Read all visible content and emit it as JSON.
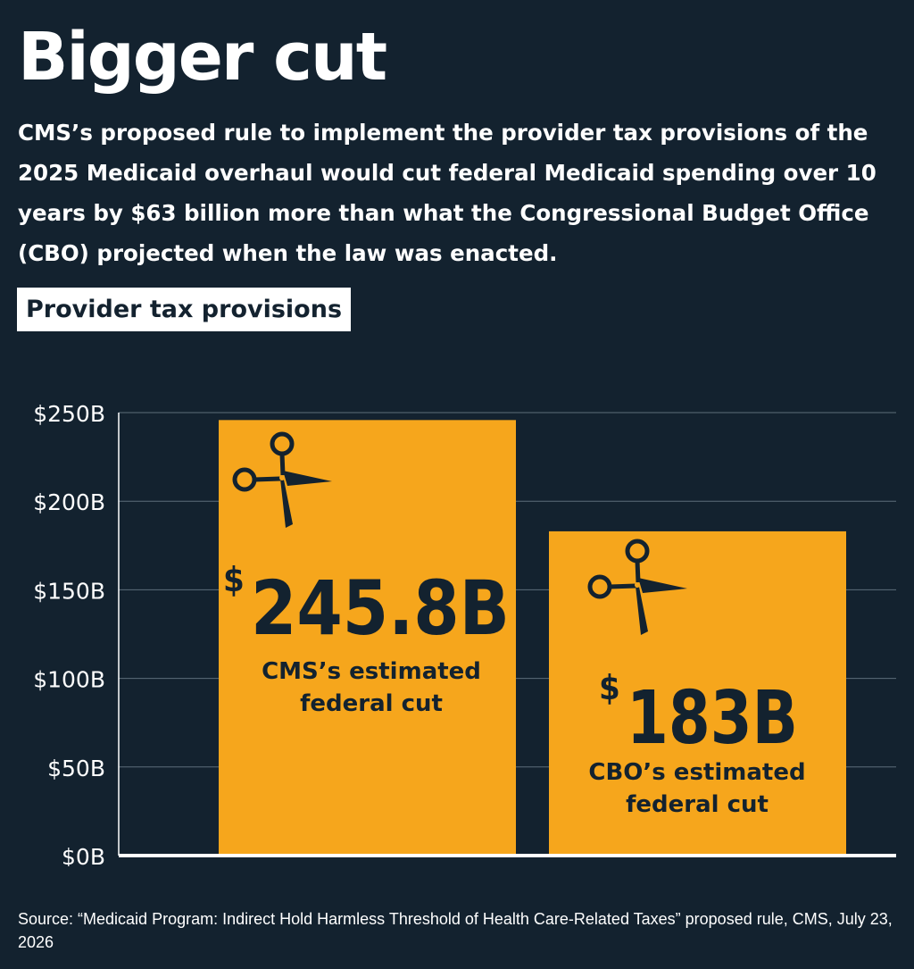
{
  "title": "Bigger cut",
  "subtitle": "CMS’s proposed rule to implement the provider tax provisions of the 2025 Medicaid overhaul would cut federal Medicaid spending over 10 years by $63 billion more than what the Congressional Budget Office (CBO) projected when the law was enacted.",
  "section_label": "Provider tax provisions",
  "source": "Source: “Medicaid Program: Indirect Hold Harmless Threshold of Health Care-Related Taxes” proposed rule, CMS, July 23, 2026",
  "colors": {
    "background": "#13222f",
    "bar": "#f6a61c",
    "bar_text": "#13222f",
    "gridline": "#5d6d7a",
    "text": "#ffffff"
  },
  "chart_data": {
    "type": "bar",
    "categories": [
      "CMS’s estimated federal cut",
      "CBO’s estimated federal cut"
    ],
    "values": [
      245.8,
      183
    ],
    "bars": [
      {
        "dollar_sign": "$",
        "value_label": "245.8B",
        "label_lines": [
          "CMS’s estimated",
          "federal cut"
        ],
        "icon": "scissors-icon"
      },
      {
        "dollar_sign": "$",
        "value_label": "183B",
        "label_lines": [
          "CBO’s estimated",
          "federal cut"
        ],
        "icon": "scissors-icon"
      }
    ],
    "y_ticks": [
      0,
      50,
      100,
      150,
      200,
      250
    ],
    "y_tick_labels": [
      "$0B",
      "$50B",
      "$100B",
      "$150B",
      "$200B",
      "$250B"
    ],
    "ylim": [
      0,
      250
    ],
    "grid": true,
    "legend": "none"
  }
}
